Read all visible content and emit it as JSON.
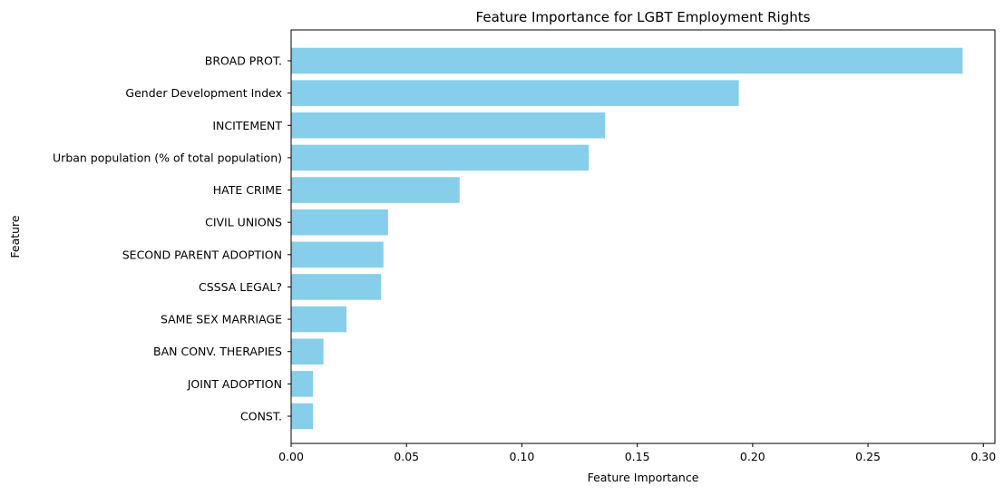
{
  "chart_data": {
    "type": "bar",
    "orientation": "horizontal",
    "title": "Feature Importance for LGBT Employment Rights",
    "xlabel": "Feature Importance",
    "ylabel": "Feature",
    "xlim": [
      0.0,
      0.305
    ],
    "xticks": [
      0.0,
      0.05,
      0.1,
      0.15,
      0.2,
      0.25,
      0.3
    ],
    "xtick_labels": [
      "0.00",
      "0.05",
      "0.10",
      "0.15",
      "0.20",
      "0.25",
      "0.30"
    ],
    "categories": [
      "BROAD PROT.",
      "Gender Development Index",
      "INCITEMENT",
      "Urban population (% of total population)",
      "HATE CRIME",
      "CIVIL UNIONS",
      "SECOND PARENT ADOPTION",
      "CSSSA LEGAL?",
      "SAME SEX MARRIAGE",
      "BAN CONV. THERAPIES",
      "JOINT ADOPTION",
      "CONST."
    ],
    "values": [
      0.291,
      0.194,
      0.136,
      0.129,
      0.073,
      0.042,
      0.04,
      0.039,
      0.024,
      0.014,
      0.0095,
      0.0095
    ],
    "bar_color": "#87ceeb",
    "grid": false,
    "legend": "none"
  }
}
